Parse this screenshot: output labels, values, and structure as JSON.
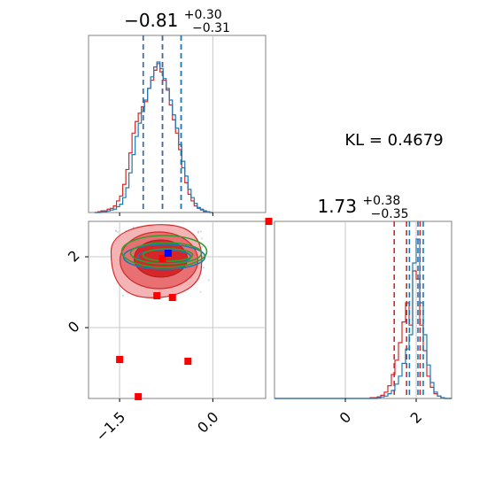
{
  "chart_data": [
    {
      "type": "histogram",
      "panel": "marginal-param-1",
      "title_value": "−0.81",
      "title_plus": "+0.30",
      "title_minus": "−0.31",
      "xlim": [
        -2.0,
        0.85
      ],
      "bins_x": [
        -1.9,
        -1.85,
        -1.8,
        -1.75,
        -1.7,
        -1.65,
        -1.6,
        -1.55,
        -1.5,
        -1.45,
        -1.4,
        -1.35,
        -1.3,
        -1.25,
        -1.2,
        -1.15,
        -1.1,
        -1.05,
        -1.0,
        -0.95,
        -0.9,
        -0.85,
        -0.8,
        -0.75,
        -0.7,
        -0.65,
        -0.6,
        -0.55,
        -0.5,
        -0.45,
        -0.4,
        -0.35,
        -0.3,
        -0.25,
        -0.2,
        -0.15,
        -0.1,
        -0.05
      ],
      "series": [
        {
          "color": "#d62728",
          "values": [
            0,
            1,
            2,
            2,
            4,
            5,
            8,
            14,
            20,
            34,
            52,
            72,
            96,
            110,
            120,
            128,
            134,
            150,
            160,
            172,
            180,
            170,
            160,
            148,
            130,
            112,
            96,
            76,
            54,
            36,
            22,
            14,
            8,
            5,
            3,
            1,
            1,
            0
          ],
          "vlines": [
            -1.12,
            -0.81,
            -0.51
          ]
        },
        {
          "color": "#1f77b4",
          "values": [
            0,
            0,
            1,
            1,
            2,
            3,
            4,
            7,
            10,
            18,
            30,
            48,
            70,
            92,
            108,
            122,
            136,
            150,
            164,
            176,
            182,
            174,
            162,
            150,
            136,
            118,
            102,
            82,
            62,
            44,
            28,
            18,
            11,
            6,
            4,
            2,
            1,
            0
          ],
          "vlines": [
            -1.12,
            -0.81,
            -0.51
          ]
        }
      ]
    },
    {
      "type": "contour",
      "panel": "joint",
      "xlim": [
        -2.0,
        0.85
      ],
      "ylim": [
        -2.0,
        3.0
      ],
      "xticks": [
        "−1.5",
        "0.0"
      ],
      "yticks": [
        "0",
        "2"
      ],
      "red_markers": [
        [
          -0.81,
          1.95
        ],
        [
          -0.9,
          0.9
        ],
        [
          -1.5,
          -0.9
        ],
        [
          -0.4,
          -0.95
        ],
        [
          -1.2,
          -1.95
        ],
        [
          0.9,
          3.0
        ],
        [
          -0.65,
          0.85
        ]
      ],
      "blue_marker": [
        -0.72,
        2.1
      ]
    },
    {
      "type": "histogram",
      "panel": "marginal-param-2",
      "title_value": "1.73",
      "title_plus": "+0.38",
      "title_minus": "−0.35",
      "xlim": [
        -2.0,
        3.0
      ],
      "xticks": [
        "0",
        "2"
      ],
      "series": [
        {
          "color": "#d62728",
          "values": [
            0,
            1,
            1,
            2,
            4,
            8,
            16,
            30,
            48,
            70,
            96,
            120,
            92,
            160,
            150,
            92,
            60,
            28,
            14,
            6,
            3,
            1
          ],
          "vlines": [
            1.38,
            1.73,
            2.11
          ]
        },
        {
          "color": "#1f77b4",
          "values": [
            0,
            0,
            0,
            1,
            2,
            3,
            6,
            10,
            18,
            28,
            44,
            62,
            80,
            170,
            200,
            120,
            80,
            42,
            20,
            8,
            3,
            1
          ],
          "vlines": [
            1.81,
            2.05,
            2.2
          ]
        }
      ]
    }
  ],
  "annotation": {
    "kl_text": "KL = 0.4679"
  }
}
